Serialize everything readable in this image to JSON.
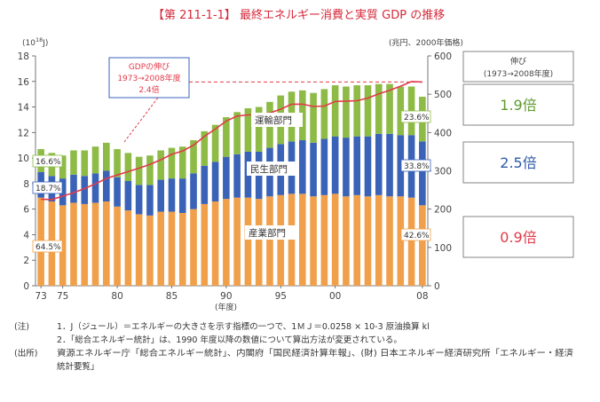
{
  "title": "【第 211-1-1】 最終エネルギー消費と実質 GDP の推移",
  "left_unit_prefix": "(10",
  "left_unit_exp": "18",
  "left_unit_suffix": "J)",
  "right_unit": "(兆円、2000年価格)",
  "x_axis_label": "(年度)",
  "segment_labels": {
    "industry": "産業部門",
    "residential": "民生部門",
    "transport": "運輸部門"
  },
  "gdp_note": [
    "GDPの伸び",
    "1973→2008年度",
    "2.4倍"
  ],
  "growth_panel": {
    "header_line1": "伸び",
    "header_line2": "(1973→2008年度)",
    "transport": "1.9倍",
    "residential": "2.5倍",
    "industry": "0.9倍"
  },
  "share_labels": {
    "1973": {
      "transport": "16.6%",
      "residential": "18.7%",
      "industry": "64.5%"
    },
    "2008": {
      "transport": "23.6%",
      "residential": "33.8%",
      "industry": "42.6%"
    }
  },
  "notes": [
    {
      "prefix": "(注)",
      "text": "1．J（ジュール）＝エネルギーの大きさを示す指標の一つで、1ＭＪ＝0.0258 × 10-3 原油換算 kl"
    },
    {
      "prefix": "",
      "text": "2．「総合エネルギー統計」は、1990 年度以降の数値について算出方法が変更されている。"
    },
    {
      "prefix": "(出所)",
      "text": "資源エネルギー庁「総合エネルギー統計」、内閣府「国民経済計算年報」、(財) 日本エネルギー経済研究所「エネルギー・経済"
    },
    {
      "prefix": "",
      "text": "統計要覧」"
    }
  ],
  "colors": {
    "industry": "#f0a04b",
    "residential": "#3a63b8",
    "transport": "#8dbb45",
    "gdp_line": "#e23a4a",
    "title": "#d42a3a",
    "mult_transport": "#5f9a2e",
    "mult_residential": "#2f5aa8",
    "mult_industry": "#e23a4a"
  },
  "chart_data": {
    "type": "bar",
    "stacked": true,
    "categories": [
      "73",
      "74",
      "75",
      "76",
      "77",
      "78",
      "79",
      "80",
      "81",
      "82",
      "83",
      "84",
      "85",
      "86",
      "87",
      "88",
      "89",
      "90",
      "91",
      "92",
      "93",
      "94",
      "95",
      "96",
      "97",
      "98",
      "99",
      "00",
      "01",
      "02",
      "03",
      "04",
      "05",
      "06",
      "07",
      "08"
    ],
    "x_tick_labels": [
      "73",
      "75",
      "80",
      "85",
      "90",
      "95",
      "00",
      "08"
    ],
    "series": [
      {
        "name": "産業部門",
        "values": [
          6.9,
          6.6,
          6.3,
          6.5,
          6.4,
          6.5,
          6.6,
          6.2,
          5.9,
          5.6,
          5.5,
          5.8,
          5.8,
          5.7,
          6.0,
          6.4,
          6.6,
          6.8,
          6.9,
          6.9,
          6.8,
          7.0,
          7.1,
          7.2,
          7.2,
          7.0,
          7.1,
          7.2,
          7.0,
          7.1,
          7.0,
          7.1,
          7.0,
          7.0,
          6.9,
          6.3
        ]
      },
      {
        "name": "民生部門",
        "values": [
          2.0,
          2.0,
          2.1,
          2.2,
          2.2,
          2.3,
          2.4,
          2.3,
          2.3,
          2.3,
          2.4,
          2.5,
          2.6,
          2.7,
          2.8,
          3.0,
          3.1,
          3.3,
          3.4,
          3.6,
          3.7,
          3.8,
          4.0,
          4.1,
          4.2,
          4.2,
          4.4,
          4.5,
          4.6,
          4.6,
          4.7,
          4.8,
          4.9,
          4.8,
          4.9,
          5.0
        ]
      },
      {
        "name": "運輸部門",
        "values": [
          1.8,
          1.8,
          1.8,
          1.9,
          2.0,
          2.1,
          2.2,
          2.2,
          2.2,
          2.2,
          2.3,
          2.3,
          2.4,
          2.5,
          2.6,
          2.7,
          2.9,
          3.1,
          3.3,
          3.4,
          3.5,
          3.6,
          3.8,
          3.9,
          3.9,
          3.9,
          3.9,
          4.0,
          4.0,
          4.0,
          4.0,
          3.9,
          3.9,
          3.8,
          3.8,
          3.5
        ]
      },
      {
        "name": "GDP",
        "axis": "right",
        "values": [
          226,
          225,
          234,
          243,
          254,
          266,
          280,
          289,
          298,
          307,
          317,
          329,
          343,
          352,
          367,
          390,
          409,
          430,
          443,
          446,
          447,
          451,
          461,
          474,
          474,
          468,
          469,
          481,
          482,
          483,
          490,
          501,
          510,
          521,
          533,
          532
        ]
      }
    ],
    "ylim_left": [
      0,
      18
    ],
    "yticks_left": [
      0,
      2,
      4,
      6,
      8,
      10,
      12,
      14,
      16,
      18
    ],
    "ylim_right": [
      0,
      600
    ],
    "yticks_right": [
      0,
      100,
      200,
      300,
      400,
      500,
      600
    ]
  }
}
